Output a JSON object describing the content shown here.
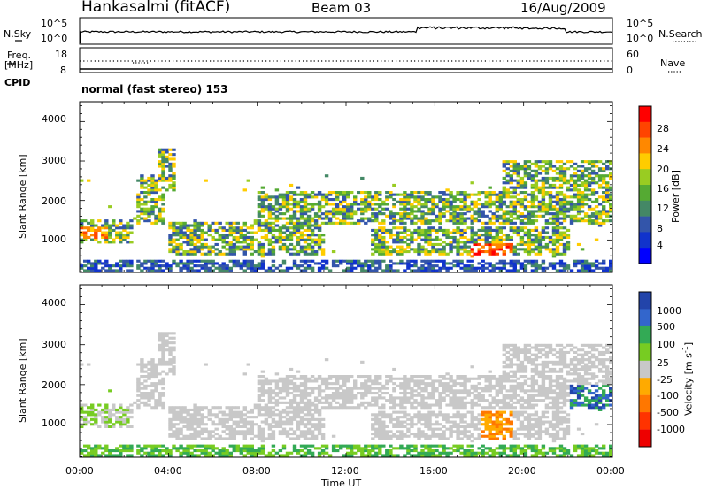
{
  "header": {
    "station": "Hankasalmi (fitACF)",
    "beam": "Beam 03",
    "date": "16/Aug/2009"
  },
  "noise_panel": {
    "left_label": "N.Sky",
    "right_label": "N.Search",
    "left_ticks": [
      "10^5",
      "10^0"
    ],
    "right_ticks": [
      "10^5",
      "10^0"
    ]
  },
  "freq_panel": {
    "left_label": "Freq.",
    "left_unit": "[MHz]",
    "left_ticks": [
      "18",
      "8"
    ],
    "right_label": "Nave",
    "right_ticks": [
      "60",
      "0"
    ],
    "cpid_label": "CPID"
  },
  "mode_text": "normal (fast stereo) 153",
  "chart_data": [
    {
      "type": "heatmap",
      "name": "power",
      "ylabel": "Slant Range [km]",
      "ylim": [
        180,
        4500
      ],
      "yticks": [
        "4000",
        "3000",
        "2000",
        "1000"
      ],
      "xlim": [
        0,
        24
      ],
      "xticks": [
        "00:00",
        "04:00",
        "08:00",
        "12:00",
        "16:00",
        "20:00",
        "00:00"
      ],
      "colorbar_label": "Power [dB]",
      "colorbar_ticks": [
        "28",
        "24",
        "20",
        "16",
        "12",
        "8",
        "4"
      ],
      "colorbar_colors": [
        "#ff0000",
        "#ff4400",
        "#ff8800",
        "#ffcc00",
        "#99cc22",
        "#55aa33",
        "#448866",
        "#3355aa",
        "#1133cc",
        "#0000ff"
      ]
    },
    {
      "type": "heatmap",
      "name": "velocity",
      "ylabel": "Slant Range [km]",
      "ylim": [
        180,
        4500
      ],
      "yticks": [
        "4000",
        "3000",
        "2000",
        "1000"
      ],
      "xlim": [
        0,
        24
      ],
      "xticks": [
        "00:00",
        "04:00",
        "08:00",
        "12:00",
        "16:00",
        "20:00",
        "00:00"
      ],
      "xlabel": "Time UT",
      "colorbar_label": "Velocity [m s",
      "colorbar_unit_exp": "-1",
      "colorbar_unit_close": "]",
      "colorbar_ticks": [
        "1000",
        "500",
        "100",
        "25",
        "-25",
        "-100",
        "-500",
        "-1000"
      ],
      "colorbar_colors": [
        "#2244aa",
        "#3366cc",
        "#33aa55",
        "#77cc22",
        "#c8c8c8",
        "#ffaa00",
        "#ff7700",
        "#ff3300",
        "#ee0000"
      ]
    }
  ]
}
